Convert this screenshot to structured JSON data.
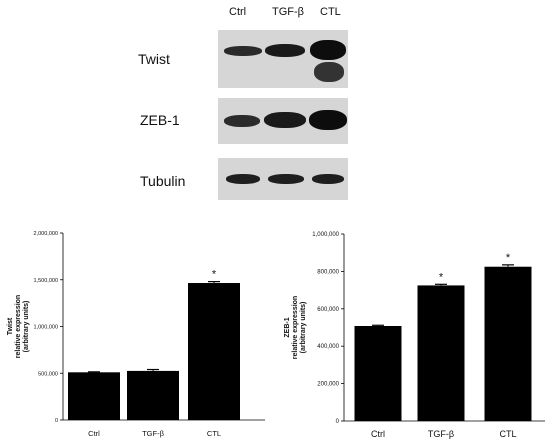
{
  "blot": {
    "lanes": [
      "Ctrl",
      "TGF-β",
      "CTL"
    ],
    "rows": [
      {
        "label": "Twist",
        "band_intensity": [
          0.85,
          0.9,
          1.0
        ],
        "smear": true
      },
      {
        "label": "ZEB-1",
        "band_intensity": [
          0.7,
          0.9,
          1.0
        ],
        "smear": false
      },
      {
        "label": "Tubulin",
        "band_intensity": [
          0.9,
          0.9,
          0.9
        ],
        "smear": false
      }
    ]
  },
  "chart_data": [
    {
      "type": "bar",
      "categories": [
        "Ctrl",
        "TGF-β",
        "CTL"
      ],
      "values": [
        510000,
        525000,
        1465000
      ],
      "errors": [
        5000,
        15000,
        15000
      ],
      "significance": [
        "",
        "",
        "*"
      ],
      "ylabel_lines": [
        "Twist",
        "relative expression",
        "(arbitrary units)"
      ],
      "ylim": [
        0,
        2000000
      ],
      "yticks": [
        0,
        500000,
        1000000,
        1500000,
        2000000
      ],
      "ytick_labels": [
        "0",
        "500,000",
        "1,000,000",
        "1,500,000",
        "2,000,000"
      ],
      "grid": false,
      "bar_color": "#000000"
    },
    {
      "type": "bar",
      "categories": [
        "Ctrl",
        "TGF-β",
        "CTL"
      ],
      "values": [
        508000,
        725000,
        825000
      ],
      "errors": [
        4000,
        6000,
        10000
      ],
      "significance": [
        "",
        "*",
        "*"
      ],
      "ylabel_lines": [
        "ZEB-1",
        "relative expression",
        "(arbitrary units)"
      ],
      "ylim": [
        0,
        1000000
      ],
      "yticks": [
        0,
        200000,
        400000,
        600000,
        800000,
        1000000
      ],
      "ytick_labels": [
        "0",
        "200,000",
        "400,000",
        "600,000",
        "800,000",
        "1,000,000"
      ],
      "grid": false,
      "bar_color": "#000000"
    }
  ]
}
